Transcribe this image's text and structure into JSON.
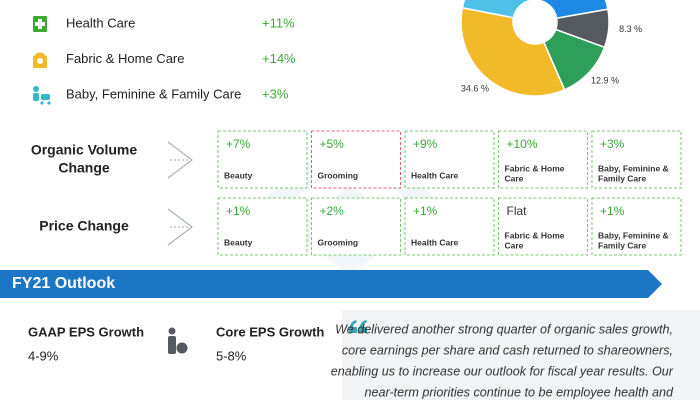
{
  "segments": [
    {
      "name": "Health Care",
      "value": "+11%"
    },
    {
      "name": "Fabric & Home Care",
      "value": "+14%"
    },
    {
      "name": "Baby, Feminine & Family Care",
      "value": "+3%"
    }
  ],
  "pie": {
    "values": [
      20.6,
      23.6,
      8.3,
      12.9,
      34.6
    ],
    "value_labels": [
      null,
      null,
      "8.3 %",
      "12.9 %",
      "34.6 %"
    ],
    "colors": [
      "#4fc1e9",
      "#1e88e5",
      "#555a60",
      "#2e9e5b",
      "#f2b928"
    ]
  },
  "metrics": [
    {
      "label": [
        "Organic Volume",
        "Change"
      ],
      "items": [
        {
          "value": "+7%",
          "category": [
            "Beauty"
          ]
        },
        {
          "value": "+5%",
          "category": [
            "Grooming"
          ]
        },
        {
          "value": "+9%",
          "category": [
            "Health Care"
          ]
        },
        {
          "value": "+10%",
          "category": [
            "Fabric & Home",
            "Care"
          ]
        },
        {
          "value": "+3%",
          "category": [
            "Baby, Feminine &",
            "Family Care"
          ]
        }
      ]
    },
    {
      "label": [
        "Price Change"
      ],
      "items": [
        {
          "value": "+1%",
          "category": [
            "Beauty"
          ]
        },
        {
          "value": "+2%",
          "category": [
            "Grooming"
          ]
        },
        {
          "value": "+1%",
          "category": [
            "Health Care"
          ]
        },
        {
          "value": "Flat",
          "category": [
            "Fabric & Home",
            "Care"
          ]
        },
        {
          "value": "+1%",
          "category": [
            "Baby, Feminine &",
            "Family Care"
          ]
        }
      ]
    }
  ],
  "outlook": {
    "title": "FY21 Outlook",
    "gaap": {
      "label": "GAAP EPS Growth",
      "value": "4-9%"
    },
    "core": {
      "label": "Core EPS Growth",
      "value": "5-8%"
    },
    "quote": [
      "We delivered another strong quarter of organic sales growth,",
      "core earnings per share and cash returned to shareowners,",
      "enabling us to increase our outlook for fiscal year results. Our",
      "near-term priorities continue to be employee health and"
    ]
  }
}
